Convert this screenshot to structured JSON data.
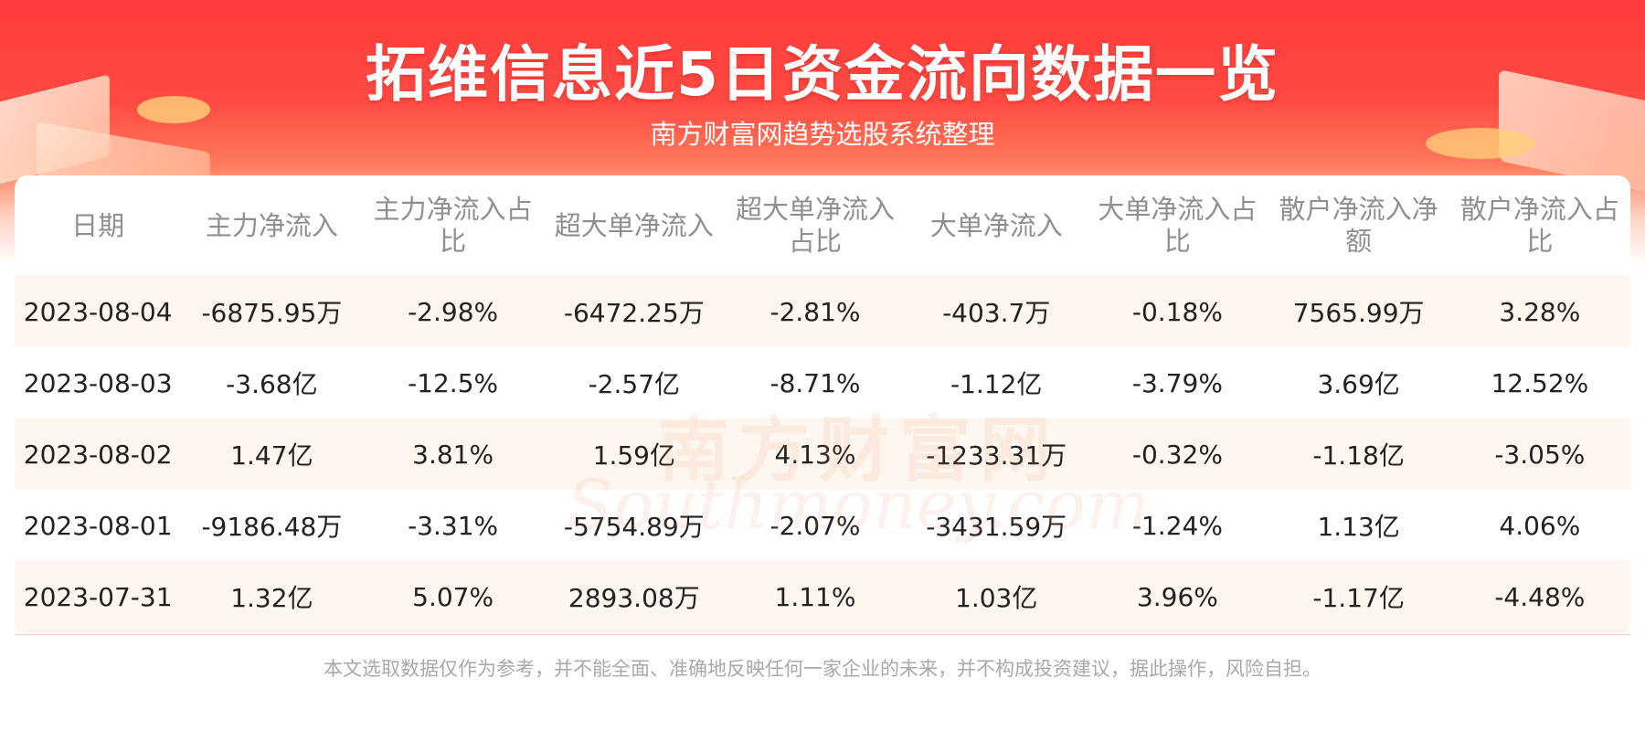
{
  "header": {
    "title": "拓维信息近5日资金流向数据一览",
    "subtitle": "南方财富网趋势选股系统整理"
  },
  "watermark": {
    "cn": "南方财富网",
    "en": "Southmoney.com"
  },
  "table": {
    "columns": [
      "日期",
      "主力净流入",
      "主力净流入占比",
      "超大单净流入",
      "超大单净流入占比",
      "大单净流入",
      "大单净流入占比",
      "散户净流入净额",
      "散户净流入占比"
    ],
    "rows": [
      [
        "2023-08-04",
        "-6875.95万",
        "-2.98%",
        "-6472.25万",
        "-2.81%",
        "-403.7万",
        "-0.18%",
        "7565.99万",
        "3.28%"
      ],
      [
        "2023-08-03",
        "-3.68亿",
        "-12.5%",
        "-2.57亿",
        "-8.71%",
        "-1.12亿",
        "-3.79%",
        "3.69亿",
        "12.52%"
      ],
      [
        "2023-08-02",
        "1.47亿",
        "3.81%",
        "1.59亿",
        "4.13%",
        "-1233.31万",
        "-0.32%",
        "-1.18亿",
        "-3.05%"
      ],
      [
        "2023-08-01",
        "-9186.48万",
        "-3.31%",
        "-5754.89万",
        "-2.07%",
        "-3431.59万",
        "-1.24%",
        "1.13亿",
        "4.06%"
      ],
      [
        "2023-07-31",
        "1.32亿",
        "5.07%",
        "2893.08万",
        "1.11%",
        "1.03亿",
        "3.96%",
        "-1.17亿",
        "-4.48%"
      ]
    ]
  },
  "footer": {
    "disclaimer": "本文选取数据仅作为参考，并不能全面、准确地反映任何一家企业的未来，并不构成投资建议，据此操作，风险自担。"
  },
  "colors": {
    "banner_red": "#ff3b3b",
    "row_tint": "#fff7ef",
    "header_text": "#8f8f8f",
    "body_text": "#222222"
  }
}
